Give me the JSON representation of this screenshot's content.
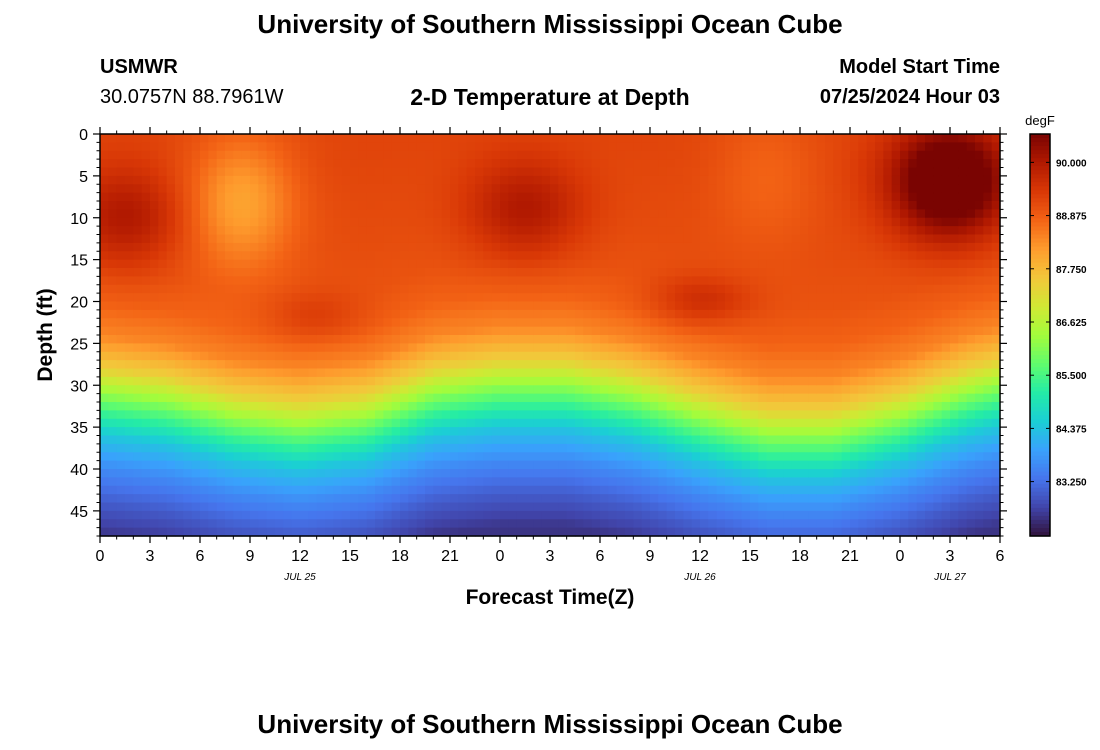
{
  "header": {
    "title": "University of Southern Mississippi Ocean Cube",
    "station": "USMWR",
    "coordinates": "30.0757N  88.7961W",
    "plot_title": "2-D Temperature at Depth",
    "model_start_label": "Model Start Time",
    "model_start_value": "07/25/2024 Hour 03"
  },
  "footer": {
    "title": "University of Southern Mississippi Ocean Cube"
  },
  "colors": {
    "palette": [
      "#30123b",
      "#4145ab",
      "#4675ed",
      "#39a2fc",
      "#1bcfd4",
      "#24eca6",
      "#61fc6c",
      "#a4fc3b",
      "#d1e834",
      "#f3c63a",
      "#fe9b2d",
      "#f36315",
      "#d93806",
      "#b11901",
      "#7a0402"
    ]
  },
  "chart_data": {
    "type": "heatmap",
    "title": "2-D Temperature at Depth",
    "xlabel": "Forecast Time(Z)",
    "ylabel": "Depth (ft)",
    "x_range_hours": [
      0,
      54
    ],
    "y_range_ft": [
      0,
      48
    ],
    "x_ticks": [
      {
        "hour": 0,
        "label": "0"
      },
      {
        "hour": 3,
        "label": "3"
      },
      {
        "hour": 6,
        "label": "6"
      },
      {
        "hour": 9,
        "label": "9"
      },
      {
        "hour": 12,
        "label": "12"
      },
      {
        "hour": 15,
        "label": "15"
      },
      {
        "hour": 18,
        "label": "18"
      },
      {
        "hour": 21,
        "label": "21"
      },
      {
        "hour": 24,
        "label": "0"
      },
      {
        "hour": 27,
        "label": "3"
      },
      {
        "hour": 30,
        "label": "6"
      },
      {
        "hour": 33,
        "label": "9"
      },
      {
        "hour": 36,
        "label": "12"
      },
      {
        "hour": 39,
        "label": "15"
      },
      {
        "hour": 42,
        "label": "18"
      },
      {
        "hour": 45,
        "label": "21"
      },
      {
        "hour": 48,
        "label": "0"
      },
      {
        "hour": 51,
        "label": "3"
      },
      {
        "hour": 54,
        "label": "6"
      }
    ],
    "date_labels": [
      {
        "hour": 12,
        "label": "JUL 25"
      },
      {
        "hour": 36,
        "label": "JUL 26"
      },
      {
        "hour": 51,
        "label": "JUL 27"
      }
    ],
    "y_ticks": [
      0,
      5,
      10,
      15,
      20,
      25,
      30,
      35,
      40,
      45
    ],
    "colorbar": {
      "unit": "degF",
      "min": 82.1,
      "max": 90.6,
      "ticks": [
        "90.000",
        "88.875",
        "87.750",
        "86.625",
        "85.500",
        "84.375",
        "83.250"
      ]
    },
    "profile_keypoints": {
      "depth_ft": [
        0,
        10,
        16,
        20,
        24,
        28,
        30,
        32,
        34,
        36,
        40,
        44,
        48
      ],
      "temp_degF": [
        89.2,
        89.1,
        89.0,
        88.8,
        88.4,
        87.4,
        86.6,
        85.8,
        85.1,
        84.4,
        83.6,
        83.0,
        82.5
      ]
    },
    "thermocline_depth_ft": {
      "hours": [
        0,
        4,
        8,
        12,
        16,
        20,
        24,
        28,
        32,
        36,
        40,
        44,
        48,
        52,
        54
      ],
      "values": [
        30,
        31,
        33,
        34,
        33,
        30,
        29,
        29,
        30.5,
        33,
        35,
        35,
        33,
        30,
        29
      ]
    },
    "surface_warm_cores": [
      {
        "hour": 1.5,
        "depth_ft": 10,
        "degF": 90.1
      },
      {
        "hour": 25.5,
        "depth_ft": 9,
        "degF": 90.1
      },
      {
        "hour": 51,
        "depth_ft": 8,
        "degF": 90.3
      },
      {
        "hour": 51,
        "depth_ft": 4,
        "degF": 90.6
      }
    ],
    "surface_cool_zones": [
      {
        "hour": 8.5,
        "depth_ft": 8,
        "degF": 88.1
      },
      {
        "hour": 40,
        "depth_ft": 5,
        "degF": 88.8
      }
    ],
    "subsurface_warm_cores": [
      {
        "hour": 13,
        "depth_ft": 22,
        "degF": 89.4
      },
      {
        "hour": 36,
        "depth_ft": 20,
        "degF": 89.6
      }
    ]
  }
}
